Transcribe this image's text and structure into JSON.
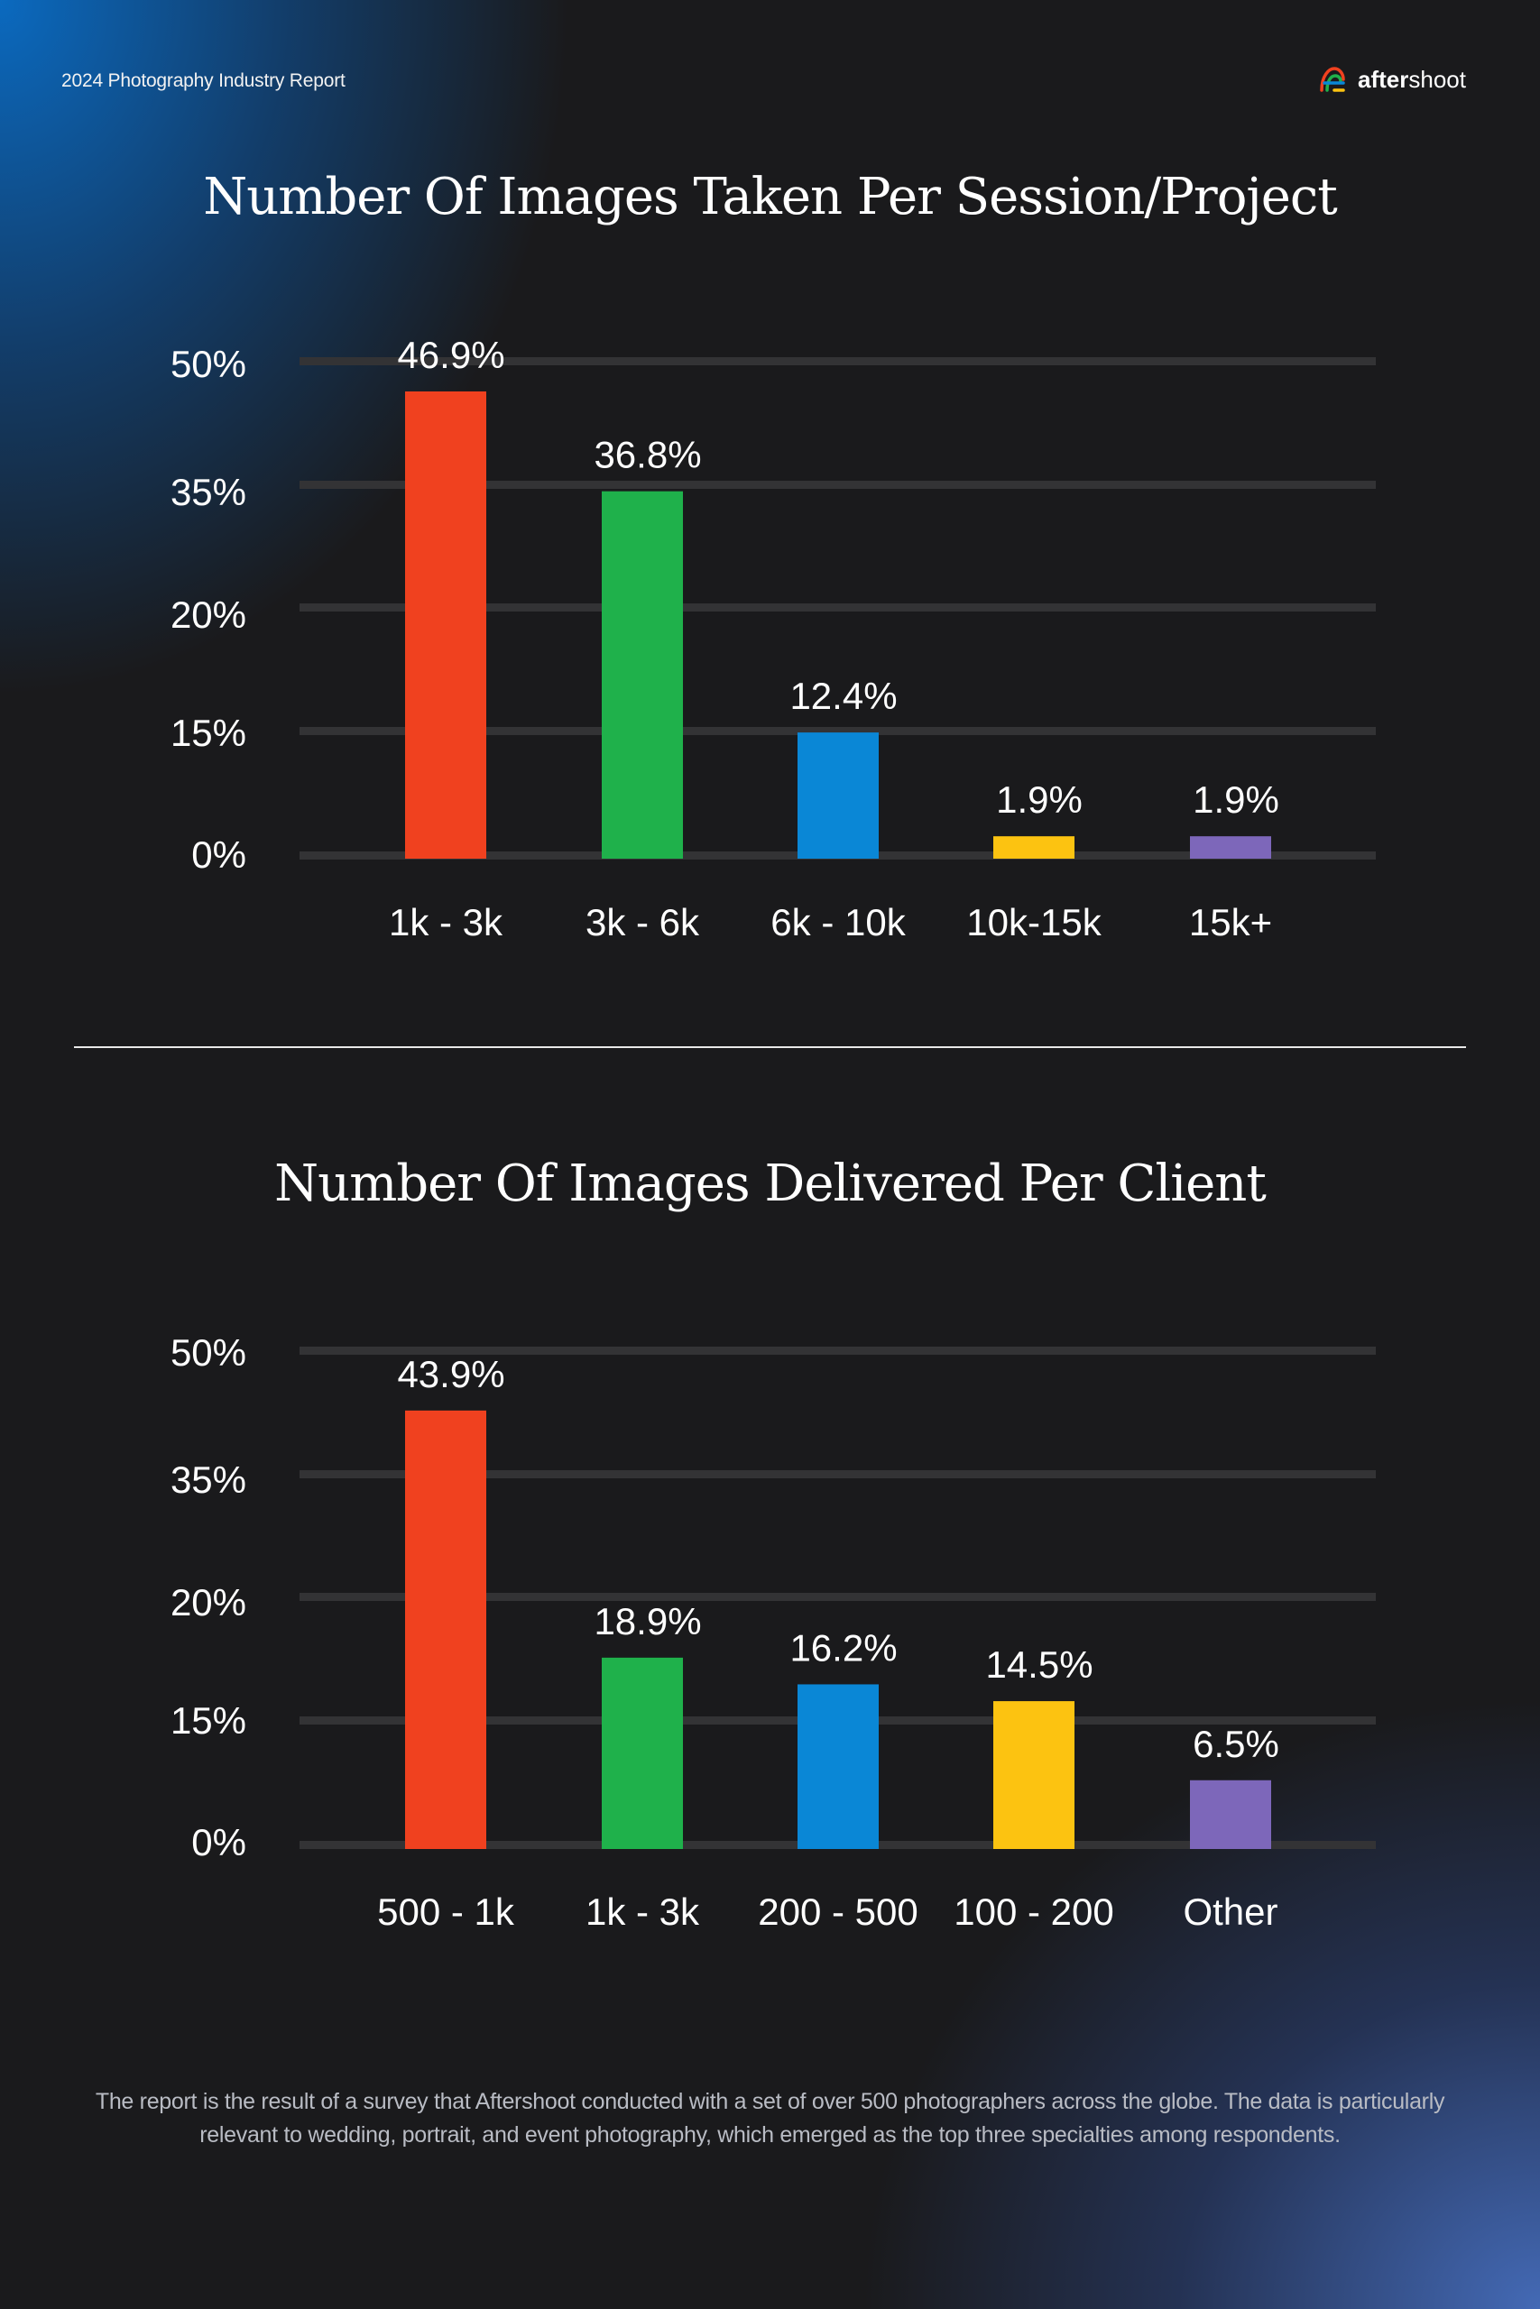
{
  "header": {
    "report_title": "2024 Photography Industry Report",
    "brand_prefix": "after",
    "brand_suffix": "shoot",
    "brand_icon": "aftershoot-logo-icon"
  },
  "colors": {
    "red": "#f0411f",
    "green": "#1fb14b",
    "blue": "#0a87d6",
    "yellow": "#fcc311",
    "purple": "#7d67ba",
    "grid": "#333335"
  },
  "chart_data": [
    {
      "type": "bar",
      "title": "Number Of Images Taken Per Session/Project",
      "categories": [
        "1k - 3k",
        "3k - 6k",
        "6k - 10k",
        "10k-15k",
        "15k+"
      ],
      "values": [
        46.9,
        36.8,
        12.4,
        1.9,
        1.9
      ],
      "value_labels": [
        "46.9%",
        "36.8%",
        "12.4%",
        "1.9%",
        "1.9%"
      ],
      "bar_colors": [
        "#f0411f",
        "#1fb14b",
        "#0a87d6",
        "#fcc311",
        "#7d67ba"
      ],
      "y_ticks": [
        "50%",
        "35%",
        "20%",
        "15%",
        "0%"
      ],
      "ylim": [
        0,
        50
      ],
      "grid": true,
      "xlabel": "",
      "ylabel": ""
    },
    {
      "type": "bar",
      "title": "Number Of Images Delivered Per Client",
      "categories": [
        "500 - 1k",
        "1k - 3k",
        "200 - 500",
        "100 - 200",
        "Other"
      ],
      "values": [
        43.9,
        18.9,
        16.2,
        14.5,
        6.5
      ],
      "value_labels": [
        "43.9%",
        "18.9%",
        "16.2%",
        "14.5%",
        "6.5%"
      ],
      "bar_colors": [
        "#f0411f",
        "#1fb14b",
        "#0a87d6",
        "#fcc311",
        "#7d67ba"
      ],
      "y_ticks": [
        "50%",
        "35%",
        "20%",
        "15%",
        "0%"
      ],
      "ylim": [
        0,
        50
      ],
      "grid": true,
      "xlabel": "",
      "ylabel": ""
    }
  ],
  "footnote": "The report is the result of a survey that Aftershoot conducted with a set of over 500 photographers across the globe. The data is particularly relevant to wedding, portrait, and event photography, which emerged as the top three specialties among respondents."
}
